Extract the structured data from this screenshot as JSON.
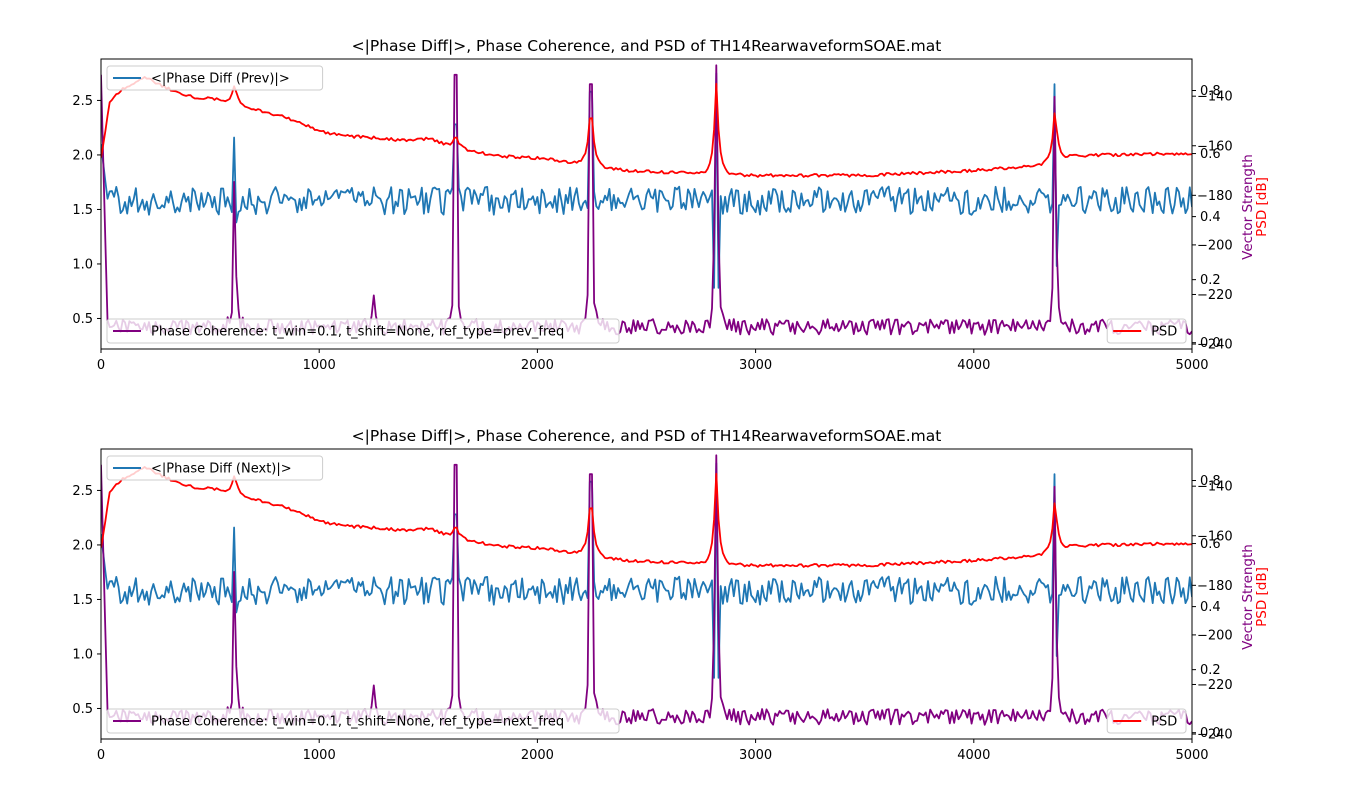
{
  "chart_data": [
    {
      "type": "line",
      "title": "<|Phase Diff|>, Phase Coherence, and PSD of TH14RearwaveformSOAE.mat",
      "xlabel": "",
      "xlim": [
        0,
        5000
      ],
      "x_ticks": [
        "0",
        "1000",
        "2000",
        "3000",
        "4000",
        "5000"
      ],
      "axes": {
        "left": {
          "label": "",
          "ylim": [
            0.22,
            2.88
          ],
          "ticks": [
            "0.5",
            "1.0",
            "1.5",
            "2.0",
            "2.5"
          ]
        },
        "right1": {
          "label": "Vector Strength",
          "color": "#800080",
          "ylim": [
            -0.02,
            0.9
          ],
          "ticks": [
            "0.0",
            "0.2",
            "0.4",
            "0.6",
            "0.8"
          ]
        },
        "right2": {
          "label": "PSD [dB]",
          "color": "#ff0000",
          "ylim": [
            -242,
            -125
          ],
          "ticks": [
            "−140",
            "−160",
            "−180",
            "−200",
            "−220",
            "−240"
          ]
        }
      },
      "series": [
        {
          "name": "<|Phase Diff (Prev)|>",
          "color": "#1f77b4",
          "axis": "left",
          "legend": "upper-left",
          "baseline": 1.58,
          "noise": 0.13,
          "start": 2.1,
          "peaks": [
            [
              612,
              2.16,
              -0.2
            ],
            [
              1625,
              2.28,
              -0.4
            ],
            [
              2245,
              2.58,
              -0.55
            ],
            [
              2820,
              2.75,
              -0.8
            ],
            [
              4372,
              2.65,
              -0.6
            ]
          ]
        },
        {
          "name": "Phase Coherence: t_win=0.1, t_shift=None, ref_type=prev_freq",
          "color": "#800080",
          "axis": "right1",
          "legend": "lower-left",
          "baseline": 0.05,
          "noise": 0.025,
          "start": 0.85,
          "peaks": [
            [
              612,
              0.51,
              0.0
            ],
            [
              1250,
              0.15,
              0.0
            ],
            [
              1625,
              0.85,
              0.0
            ],
            [
              2245,
              0.82,
              0.0
            ],
            [
              2820,
              0.88,
              0.0
            ],
            [
              4372,
              0.78,
              0.0
            ]
          ]
        },
        {
          "name": "PSD",
          "color": "#ff0000",
          "axis": "right2",
          "legend": "lower-right",
          "envelope": [
            [
              0,
              -165
            ],
            [
              40,
              -142
            ],
            [
              100,
              -137
            ],
            [
              200,
              -132
            ],
            [
              280,
              -136
            ],
            [
              400,
              -140
            ],
            [
              580,
              -142
            ],
            [
              700,
              -145
            ],
            [
              860,
              -149
            ],
            [
              1000,
              -154
            ],
            [
              1100,
              -156
            ],
            [
              1300,
              -157
            ],
            [
              1400,
              -158
            ],
            [
              1500,
              -157
            ],
            [
              1600,
              -160
            ],
            [
              1800,
              -164
            ],
            [
              2000,
              -165
            ],
            [
              2200,
              -167
            ],
            [
              2400,
              -170
            ],
            [
              2700,
              -171
            ],
            [
              3000,
              -172
            ],
            [
              3500,
              -172
            ],
            [
              4000,
              -170
            ],
            [
              4300,
              -168
            ],
            [
              4450,
              -164
            ],
            [
              5000,
              -163
            ]
          ],
          "peaks": [
            [
              612,
              -135,
              0.0
            ],
            [
              1625,
              -155,
              0.0
            ],
            [
              2245,
              -141,
              0.0
            ],
            [
              2820,
              -135,
              0.0
            ],
            [
              4372,
              -144,
              0.0
            ]
          ]
        }
      ]
    },
    {
      "type": "line",
      "title": "<|Phase Diff|>, Phase Coherence, and PSD of TH14RearwaveformSOAE.mat",
      "xlabel": "",
      "xlim": [
        0,
        5000
      ],
      "x_ticks": [
        "0",
        "1000",
        "2000",
        "3000",
        "4000",
        "5000"
      ],
      "axes": {
        "left": {
          "label": "",
          "ylim": [
            0.22,
            2.88
          ],
          "ticks": [
            "0.5",
            "1.0",
            "1.5",
            "2.0",
            "2.5"
          ]
        },
        "right1": {
          "label": "Vector Strength",
          "color": "#800080",
          "ylim": [
            -0.02,
            0.9
          ],
          "ticks": [
            "0.0",
            "0.2",
            "0.4",
            "0.6",
            "0.8"
          ]
        },
        "right2": {
          "label": "PSD [dB]",
          "color": "#ff0000",
          "ylim": [
            -242,
            -125
          ],
          "ticks": [
            "−140",
            "−160",
            "−180",
            "−200",
            "−220",
            "−240"
          ]
        }
      },
      "series": [
        {
          "name": "<|Phase Diff (Next)|>",
          "color": "#1f77b4",
          "axis": "left",
          "legend": "upper-left",
          "baseline": 1.58,
          "noise": 0.13,
          "start": 2.1,
          "peaks": [
            [
              612,
              2.16,
              -0.2
            ],
            [
              1625,
              2.28,
              -0.4
            ],
            [
              2245,
              2.58,
              -0.55
            ],
            [
              2820,
              2.75,
              -0.8
            ],
            [
              4372,
              2.65,
              -0.6
            ]
          ]
        },
        {
          "name": "Phase Coherence: t_win=0.1, t_shift=None, ref_type=next_freq",
          "color": "#800080",
          "axis": "right1",
          "legend": "lower-left",
          "baseline": 0.05,
          "noise": 0.025,
          "start": 0.85,
          "peaks": [
            [
              612,
              0.51,
              0.0
            ],
            [
              1250,
              0.15,
              0.0
            ],
            [
              1625,
              0.85,
              0.0
            ],
            [
              2245,
              0.82,
              0.0
            ],
            [
              2820,
              0.88,
              0.0
            ],
            [
              4372,
              0.78,
              0.0
            ]
          ]
        },
        {
          "name": "PSD",
          "color": "#ff0000",
          "axis": "right2",
          "legend": "lower-right",
          "envelope": [
            [
              0,
              -165
            ],
            [
              40,
              -142
            ],
            [
              100,
              -137
            ],
            [
              200,
              -132
            ],
            [
              280,
              -136
            ],
            [
              400,
              -140
            ],
            [
              580,
              -142
            ],
            [
              700,
              -145
            ],
            [
              860,
              -149
            ],
            [
              1000,
              -154
            ],
            [
              1100,
              -156
            ],
            [
              1300,
              -157
            ],
            [
              1400,
              -158
            ],
            [
              1500,
              -157
            ],
            [
              1600,
              -160
            ],
            [
              1800,
              -164
            ],
            [
              2000,
              -165
            ],
            [
              2200,
              -167
            ],
            [
              2400,
              -170
            ],
            [
              2700,
              -171
            ],
            [
              3000,
              -172
            ],
            [
              3500,
              -172
            ],
            [
              4000,
              -170
            ],
            [
              4300,
              -168
            ],
            [
              4450,
              -164
            ],
            [
              5000,
              -163
            ]
          ],
          "peaks": [
            [
              612,
              -135,
              0.0
            ],
            [
              1625,
              -155,
              0.0
            ],
            [
              2245,
              -141,
              0.0
            ],
            [
              2820,
              -135,
              0.0
            ],
            [
              4372,
              -144,
              0.0
            ]
          ]
        }
      ]
    }
  ]
}
